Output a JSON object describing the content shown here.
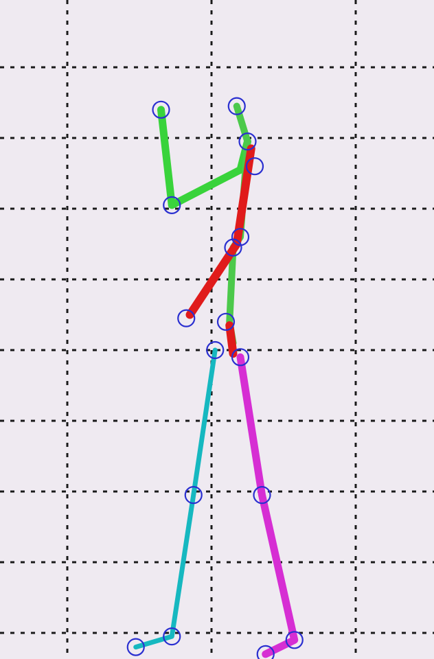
{
  "chart_data": {
    "type": "scatter",
    "title": "",
    "xlabel": "",
    "ylabel": "",
    "xlim": [
      0,
      6
    ],
    "ylim": [
      0,
      9
    ],
    "grid": true,
    "grid_x": [
      1,
      3,
      5
    ],
    "grid_y": [
      1,
      2,
      3,
      4,
      5,
      6,
      7,
      8,
      9
    ],
    "colors": {
      "background": "#efeaf1",
      "grid": "#1a1a1a",
      "joint_marker": "#2a2fd0",
      "left_arm": "#39d33b",
      "spine": "#4cc94b",
      "right_arm": "#e01b1b",
      "left_leg": "#16b8c0",
      "right_leg": "#d62ed3"
    },
    "joints": [
      {
        "name": "left-hand",
        "x": 2.3,
        "y": 8.4
      },
      {
        "name": "left-elbow",
        "x": 2.45,
        "y": 7.05
      },
      {
        "name": "head",
        "x": 3.35,
        "y": 8.45
      },
      {
        "name": "neck",
        "x": 3.5,
        "y": 7.95
      },
      {
        "name": "right-shoulder",
        "x": 3.6,
        "y": 7.6
      },
      {
        "name": "chest",
        "x": 3.4,
        "y": 6.6
      },
      {
        "name": "torso",
        "x": 3.3,
        "y": 6.45
      },
      {
        "name": "right-hand",
        "x": 2.65,
        "y": 5.45
      },
      {
        "name": "waist",
        "x": 3.2,
        "y": 5.4
      },
      {
        "name": "left-hip",
        "x": 3.05,
        "y": 5.0
      },
      {
        "name": "right-hip",
        "x": 3.4,
        "y": 4.9
      },
      {
        "name": "left-knee",
        "x": 2.75,
        "y": 2.95
      },
      {
        "name": "right-knee",
        "x": 3.7,
        "y": 2.95
      },
      {
        "name": "left-ankle",
        "x": 2.45,
        "y": 0.95
      },
      {
        "name": "left-foot",
        "x": 1.95,
        "y": 0.8
      },
      {
        "name": "right-ankle",
        "x": 4.15,
        "y": 0.9
      },
      {
        "name": "right-foot",
        "x": 3.75,
        "y": 0.7
      }
    ],
    "series": [
      {
        "color_key": "left_arm",
        "points": [
          [
            2.3,
            8.4
          ],
          [
            2.45,
            7.05
          ],
          [
            3.4,
            7.55
          ],
          [
            3.5,
            7.95
          ]
        ]
      },
      {
        "color_key": "spine",
        "points": [
          [
            3.35,
            8.45
          ],
          [
            3.5,
            7.95
          ],
          [
            3.4,
            6.6
          ],
          [
            3.3,
            6.45
          ],
          [
            3.25,
            5.4
          ],
          [
            3.3,
            5.1
          ]
        ]
      },
      {
        "color_key": "right_arm",
        "points": [
          [
            3.55,
            7.85
          ],
          [
            3.35,
            6.5
          ],
          [
            2.7,
            5.5
          ]
        ]
      },
      {
        "color_key": "right_arm",
        "points": [
          [
            3.25,
            5.35
          ],
          [
            3.3,
            4.95
          ]
        ]
      },
      {
        "color_key": "left_leg",
        "points": [
          [
            3.05,
            5.0
          ],
          [
            2.75,
            2.95
          ],
          [
            2.45,
            0.95
          ],
          [
            1.95,
            0.8
          ]
        ]
      },
      {
        "color_key": "right_leg",
        "points": [
          [
            3.4,
            4.9
          ],
          [
            3.7,
            2.95
          ],
          [
            4.15,
            0.9
          ],
          [
            3.75,
            0.7
          ]
        ]
      }
    ]
  }
}
